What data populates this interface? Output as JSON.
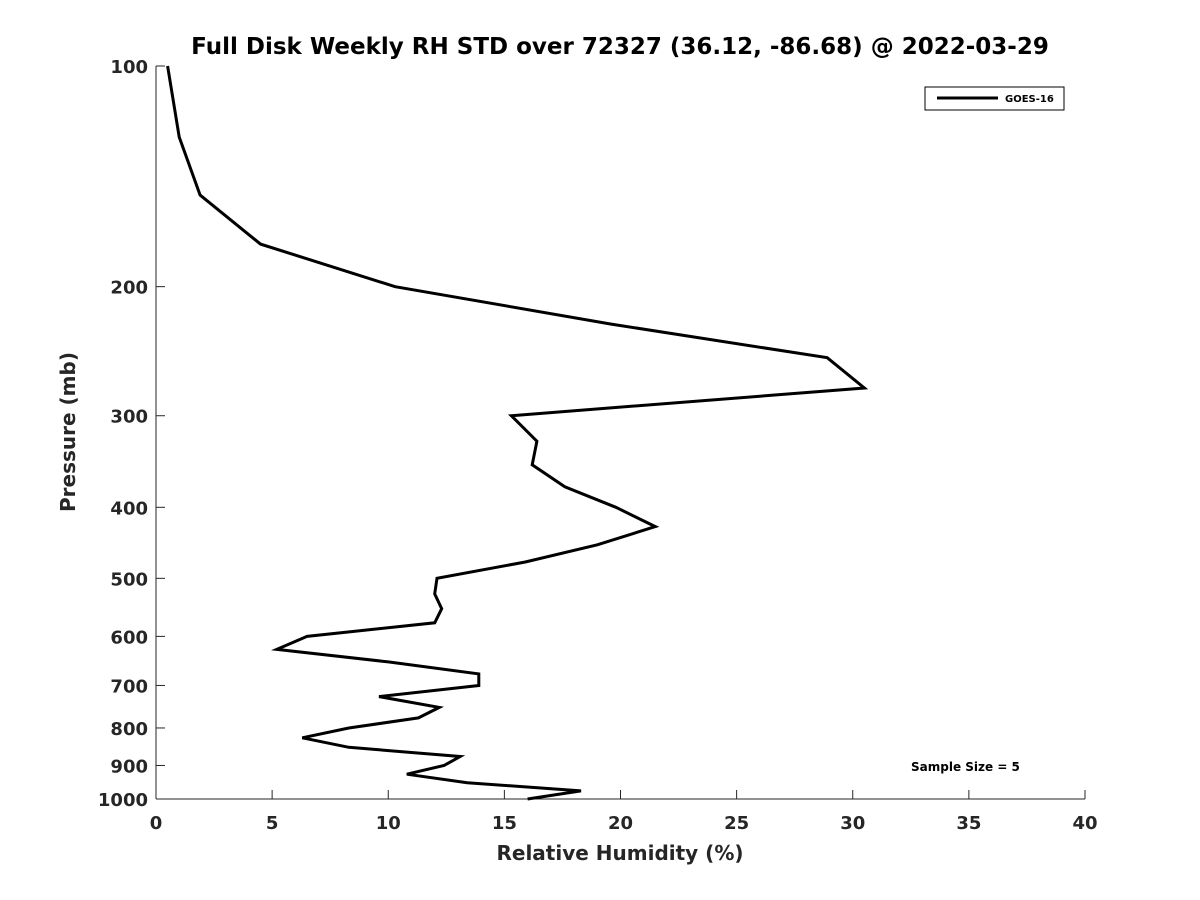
{
  "chart_data": {
    "type": "line",
    "title": "Full Disk Weekly RH STD over 72327 (36.12, -86.68) @ 2022-03-29",
    "xlabel": "Relative Humidity (%)",
    "ylabel": "Pressure (mb)",
    "xlim": [
      0,
      40
    ],
    "ylim": [
      1000,
      100
    ],
    "y_scale": "log",
    "y_reversed": true,
    "grid": false,
    "x_ticks": [
      "0",
      "5",
      "10",
      "15",
      "20",
      "25",
      "30",
      "35",
      "40"
    ],
    "y_ticks": [
      "100",
      "200",
      "300",
      "400",
      "500",
      "600",
      "700",
      "800",
      "900",
      "1000"
    ],
    "legend": {
      "position": "top-right",
      "entries": [
        "GOES-16"
      ]
    },
    "annotation": "Sample Size = 5",
    "series": [
      {
        "name": "GOES-16",
        "color": "#000000",
        "points": [
          [
            0.5,
            100
          ],
          [
            1.0,
            125
          ],
          [
            1.9,
            150
          ],
          [
            4.5,
            175
          ],
          [
            10.3,
            200
          ],
          [
            19.6,
            225
          ],
          [
            28.9,
            250
          ],
          [
            30.5,
            275
          ],
          [
            15.3,
            300
          ],
          [
            16.4,
            325
          ],
          [
            16.2,
            350
          ],
          [
            17.6,
            375
          ],
          [
            19.8,
            400
          ],
          [
            21.5,
            425
          ],
          [
            19.0,
            450
          ],
          [
            15.9,
            475
          ],
          [
            12.1,
            500
          ],
          [
            12.0,
            525
          ],
          [
            12.3,
            550
          ],
          [
            12.0,
            575
          ],
          [
            6.5,
            600
          ],
          [
            5.2,
            625
          ],
          [
            10.0,
            650
          ],
          [
            13.9,
            675
          ],
          [
            13.9,
            700
          ],
          [
            9.6,
            725
          ],
          [
            12.2,
            750
          ],
          [
            11.3,
            775
          ],
          [
            8.3,
            800
          ],
          [
            6.3,
            825
          ],
          [
            8.3,
            850
          ],
          [
            13.1,
            875
          ],
          [
            12.4,
            900
          ],
          [
            10.8,
            925
          ],
          [
            13.4,
            950
          ],
          [
            18.3,
            975
          ],
          [
            16.0,
            1000
          ]
        ]
      }
    ]
  }
}
